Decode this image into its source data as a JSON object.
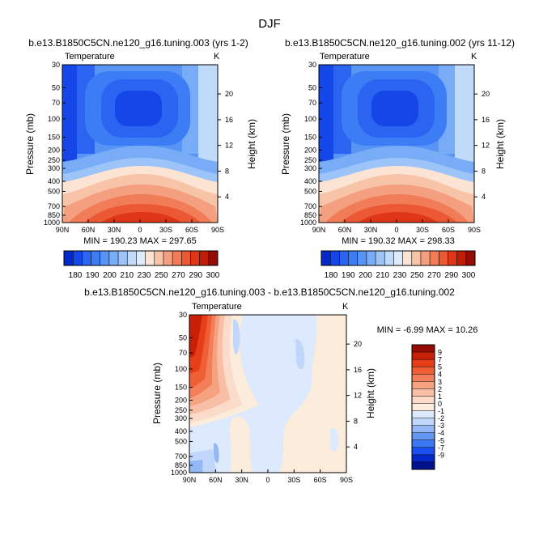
{
  "page_title": "DJF",
  "colors": {
    "abs_scale": [
      "#0528c8",
      "#1446e8",
      "#2a64f0",
      "#3c7cf4",
      "#5894f4",
      "#78acf6",
      "#9cc4f8",
      "#c0dafa",
      "#dceafc",
      "#fce4d4",
      "#f8c4a8",
      "#f4a080",
      "#f07c58",
      "#ec5834",
      "#e03618",
      "#c01c08",
      "#960c04"
    ],
    "diff_scale": [
      "#02118c",
      "#0528c8",
      "#1a50f0",
      "#3c78f4",
      "#6496f4",
      "#94b8f6",
      "#c0d6fa",
      "#dde9fc",
      "#fcecdc",
      "#fbdccb",
      "#f9bfa6",
      "#f6a281",
      "#f27f59",
      "#ee5f36",
      "#e63e18",
      "#c81f06",
      "#960c04"
    ]
  },
  "chart_data": [
    {
      "type": "contour",
      "title": "b.e13.B1850C5CN.ne120_g16.tuning.003 (yrs 1-2)",
      "left_label": "Temperature",
      "right_label": "K",
      "ylabel": "Pressure (mb)",
      "ylabel_right": "Height (km)",
      "x_ticks": [
        "90N",
        "60N",
        "30N",
        "0",
        "30S",
        "60S",
        "90S"
      ],
      "y_ticks": [
        "30",
        "50",
        "70",
        "100",
        "150",
        "200",
        "250",
        "300",
        "400",
        "500",
        "700",
        "850",
        "1000"
      ],
      "y_ticks_right": [
        "20",
        "16",
        "12",
        "8",
        "4"
      ],
      "stats": "MIN = 190.23   MAX = 297.65",
      "min": 190.23,
      "max": 297.65,
      "colorbar_labels": [
        "180",
        "190",
        "200",
        "210",
        "230",
        "250",
        "270",
        "290",
        "300"
      ]
    },
    {
      "type": "contour",
      "title": "b.e13.B1850C5CN.ne120_g16.tuning.002 (yrs 11-12)",
      "left_label": "Temperature",
      "right_label": "K",
      "ylabel": "Pressure (mb)",
      "ylabel_right": "Height (km)",
      "x_ticks": [
        "90N",
        "60N",
        "30N",
        "0",
        "30S",
        "60S",
        "90S"
      ],
      "y_ticks": [
        "30",
        "50",
        "70",
        "100",
        "150",
        "200",
        "250",
        "300",
        "400",
        "500",
        "700",
        "850",
        "1000"
      ],
      "y_ticks_right": [
        "20",
        "16",
        "12",
        "8",
        "4"
      ],
      "stats": "MIN = 190.32   MAX = 298.33",
      "min": 190.32,
      "max": 298.33,
      "colorbar_labels": [
        "180",
        "190",
        "200",
        "210",
        "230",
        "250",
        "270",
        "290",
        "300"
      ]
    },
    {
      "type": "contour",
      "title": "b.e13.B1850C5CN.ne120_g16.tuning.003 - b.e13.B1850C5CN.ne120_g16.tuning.002",
      "left_label": "Temperature",
      "right_label": "K",
      "ylabel": "Pressure (mb)",
      "ylabel_right": "Height (km)",
      "x_ticks": [
        "90N",
        "60N",
        "30N",
        "0",
        "30S",
        "60S",
        "90S"
      ],
      "y_ticks": [
        "30",
        "50",
        "70",
        "100",
        "150",
        "200",
        "250",
        "300",
        "400",
        "500",
        "700",
        "850",
        "1000"
      ],
      "y_ticks_right": [
        "20",
        "16",
        "12",
        "8",
        "4"
      ],
      "stats": "MIN =  -6.99   MAX =  10.26",
      "min": -6.99,
      "max": 10.26,
      "colorbar_labels": [
        "9",
        "7",
        "5",
        "4",
        "3",
        "2",
        "1",
        "0",
        "-1",
        "-2",
        "-3",
        "-4",
        "-5",
        "-7",
        "-9"
      ]
    }
  ]
}
